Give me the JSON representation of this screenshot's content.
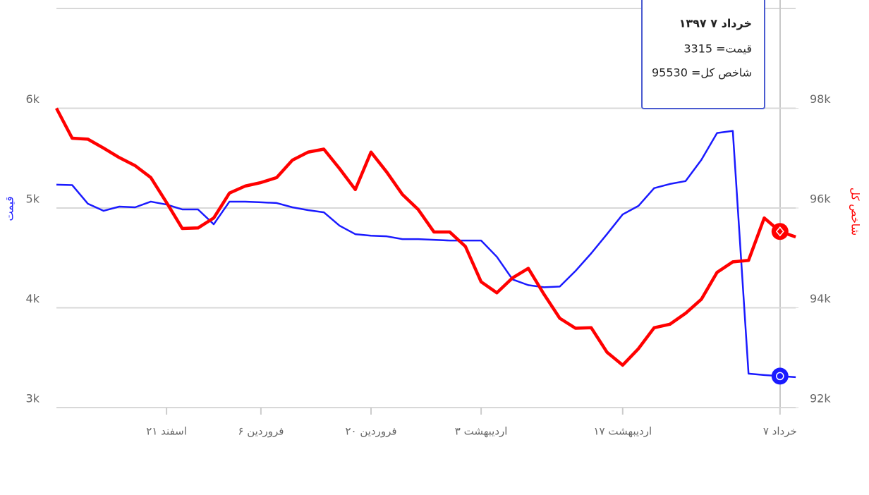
{
  "chart_data": {
    "type": "line",
    "categories": [
      null,
      null,
      null,
      null,
      null,
      null,
      null,
      "۲۱ اسفند",
      null,
      null,
      null,
      null,
      null,
      "۶ فروردین",
      null,
      null,
      null,
      null,
      null,
      null,
      "۲۰ فروردین",
      null,
      null,
      null,
      null,
      null,
      null,
      "۳ اردیبهشت",
      null,
      null,
      null,
      null,
      null,
      null,
      null,
      null,
      "۱۷ اردیبهشت",
      null,
      null,
      null,
      null,
      null,
      null,
      null,
      null,
      null,
      "۷ خرداد",
      null
    ],
    "series": [
      {
        "name": "قیمت",
        "color": "#1a1aff",
        "axis": "y",
        "values": [
          5234,
          5230,
          5043,
          4972,
          5014,
          5007,
          5064,
          5035,
          4986,
          4986,
          4837,
          5064,
          5064,
          5057,
          5050,
          5007,
          4979,
          4957,
          4823,
          4738,
          4723,
          4716,
          4688,
          4688,
          4681,
          4674,
          4674,
          4674,
          4511,
          4284,
          4227,
          4206,
          4213,
          4369,
          4546,
          4738,
          4936,
          5021,
          5199,
          5241,
          5270,
          5482,
          5752,
          5773,
          3340,
          3326,
          3315,
          3305
        ]
      },
      {
        "name": "شاخص کل",
        "color": "#ff0000",
        "axis": "y2",
        "values": [
          98000,
          97400,
          97380,
          97200,
          97010,
          96850,
          96610,
          96110,
          95590,
          95600,
          95800,
          96300,
          96440,
          96510,
          96610,
          96960,
          97120,
          97180,
          96790,
          96370,
          97120,
          96720,
          96270,
          95970,
          95520,
          95520,
          95230,
          94520,
          94300,
          94600,
          94790,
          94270,
          93790,
          93590,
          93600,
          93110,
          92850,
          93180,
          93600,
          93670,
          93890,
          94170,
          94710,
          94920,
          94950,
          95800,
          95530,
          95420
        ]
      }
    ],
    "ylim": [
      3000,
      7000
    ],
    "yticks": [
      {
        "value": 3000,
        "label": "3k"
      },
      {
        "value": 4000,
        "label": "4k"
      },
      {
        "value": 5000,
        "label": "5k"
      },
      {
        "value": 6000,
        "label": "6k"
      }
    ],
    "y2lim": [
      92000,
      100000
    ],
    "y2ticks": [
      {
        "value": 92000,
        "label": "92k"
      },
      {
        "value": 94000,
        "label": "94k"
      },
      {
        "value": 96000,
        "label": "96k"
      },
      {
        "value": 98000,
        "label": "98k"
      }
    ],
    "grid": true,
    "tooltip": {
      "title": "خرداد ۷ ۱۳۹۷",
      "lines": [
        "قیمت= 3315",
        "شاخص کل= 95530"
      ]
    }
  }
}
